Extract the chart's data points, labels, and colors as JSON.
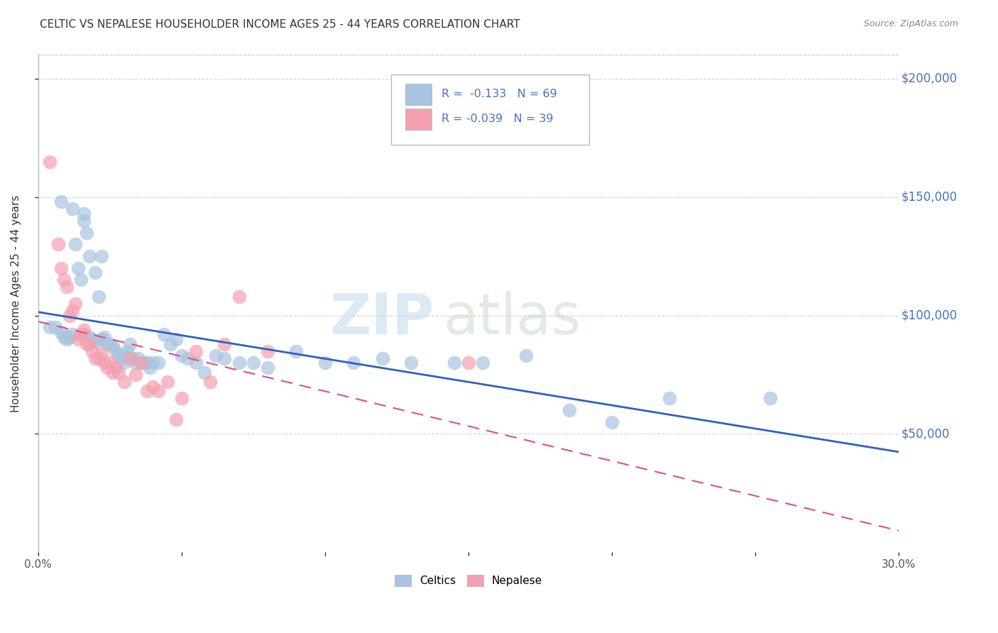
{
  "title": "CELTIC VS NEPALESE HOUSEHOLDER INCOME AGES 25 - 44 YEARS CORRELATION CHART",
  "source": "Source: ZipAtlas.com",
  "ylabel": "Householder Income Ages 25 - 44 years",
  "ytick_labels": [
    "$50,000",
    "$100,000",
    "$150,000",
    "$200,000"
  ],
  "ytick_values": [
    50000,
    100000,
    150000,
    200000
  ],
  "xlim": [
    0.0,
    0.3
  ],
  "ylim": [
    0,
    210000
  ],
  "legend_bottom": [
    "Celtics",
    "Nepalese"
  ],
  "celtics_R": "-0.133",
  "celtics_N": "69",
  "nepalese_R": "-0.039",
  "nepalese_N": "39",
  "celtics_color": "#a8c4e0",
  "nepalese_color": "#f4a0b0",
  "celtics_line_color": "#3060c0",
  "nepalese_line_color": "#e05080",
  "title_color": "#333333",
  "right_ytick_color": "#4472c4",
  "legend_text_color": "#4472c4",
  "celtics_x": [
    0.004,
    0.006,
    0.008,
    0.009,
    0.01,
    0.011,
    0.012,
    0.013,
    0.014,
    0.015,
    0.016,
    0.016,
    0.017,
    0.018,
    0.018,
    0.019,
    0.02,
    0.02,
    0.021,
    0.022,
    0.022,
    0.023,
    0.024,
    0.025,
    0.026,
    0.027,
    0.028,
    0.029,
    0.03,
    0.031,
    0.032,
    0.033,
    0.034,
    0.035,
    0.036,
    0.037,
    0.038,
    0.039,
    0.04,
    0.042,
    0.044,
    0.046,
    0.048,
    0.05,
    0.052,
    0.055,
    0.058,
    0.062,
    0.065,
    0.07,
    0.075,
    0.08,
    0.09,
    0.1,
    0.11,
    0.12,
    0.13,
    0.145,
    0.155,
    0.17,
    0.185,
    0.2,
    0.22,
    0.255,
    0.008,
    0.012,
    0.016,
    0.022,
    0.03
  ],
  "celtics_y": [
    95000,
    95000,
    93000,
    91000,
    90000,
    91000,
    92000,
    130000,
    120000,
    115000,
    140000,
    92000,
    135000,
    91000,
    125000,
    90000,
    118000,
    89000,
    108000,
    90000,
    90000,
    91000,
    88000,
    88000,
    87000,
    85000,
    83000,
    82000,
    83000,
    85000,
    88000,
    82000,
    80000,
    82000,
    80000,
    80000,
    80000,
    78000,
    80000,
    80000,
    92000,
    88000,
    90000,
    83000,
    82000,
    80000,
    76000,
    83000,
    82000,
    80000,
    80000,
    78000,
    85000,
    80000,
    80000,
    82000,
    80000,
    80000,
    80000,
    83000,
    60000,
    55000,
    65000,
    65000,
    148000,
    145000,
    143000,
    125000,
    80000
  ],
  "nepalese_x": [
    0.004,
    0.007,
    0.008,
    0.009,
    0.01,
    0.011,
    0.012,
    0.013,
    0.014,
    0.015,
    0.016,
    0.017,
    0.018,
    0.019,
    0.02,
    0.021,
    0.022,
    0.023,
    0.024,
    0.025,
    0.026,
    0.027,
    0.028,
    0.03,
    0.032,
    0.034,
    0.036,
    0.038,
    0.04,
    0.042,
    0.045,
    0.048,
    0.05,
    0.055,
    0.06,
    0.065,
    0.07,
    0.08,
    0.15
  ],
  "nepalese_y": [
    165000,
    130000,
    120000,
    115000,
    112000,
    100000,
    102000,
    105000,
    90000,
    92000,
    94000,
    88000,
    88000,
    85000,
    82000,
    82000,
    84000,
    80000,
    78000,
    80000,
    76000,
    78000,
    76000,
    72000,
    82000,
    75000,
    80000,
    68000,
    70000,
    68000,
    72000,
    56000,
    65000,
    85000,
    72000,
    88000,
    108000,
    85000,
    80000
  ]
}
